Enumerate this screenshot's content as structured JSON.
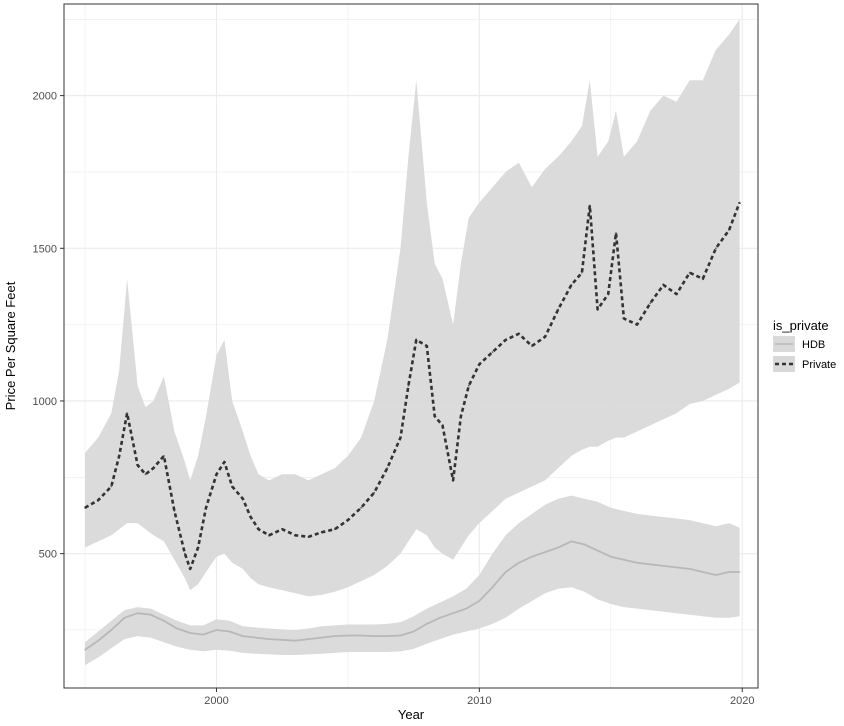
{
  "chart_data": {
    "type": "line",
    "xlabel": "Year",
    "ylabel": "Price Per Square Feet",
    "xlim": [
      1994.2,
      2020.6
    ],
    "ylim": [
      60,
      2300
    ],
    "x_ticks": [
      2000,
      2010,
      2020
    ],
    "x_tick_labels": [
      "2000",
      "2010",
      "2020"
    ],
    "y_ticks": [
      500,
      1000,
      1500,
      2000
    ],
    "y_tick_labels": [
      "500",
      "1000",
      "1500",
      "2000"
    ],
    "grid": true,
    "legend": {
      "title": "is_private",
      "position": "right",
      "entries": [
        "HDB",
        "Private"
      ]
    },
    "colors": {
      "ribbon": "#d9d9d9",
      "hdb_line": "#b8b8b8",
      "private_line": "#333333",
      "grid": "#ebebeb",
      "panel_border": "#333333"
    },
    "series": [
      {
        "name": "HDB",
        "style": "solid",
        "x": [
          1995.0,
          1995.5,
          1996.0,
          1996.5,
          1997.0,
          1997.5,
          1998.0,
          1998.5,
          1999.0,
          1999.5,
          2000.0,
          2000.5,
          2001.0,
          2001.5,
          2002.0,
          2002.5,
          2003.0,
          2003.5,
          2004.0,
          2004.5,
          2005.0,
          2005.5,
          2006.0,
          2006.5,
          2007.0,
          2007.5,
          2008.0,
          2008.5,
          2009.0,
          2009.5,
          2010.0,
          2010.5,
          2011.0,
          2011.5,
          2012.0,
          2012.5,
          2013.0,
          2013.5,
          2014.0,
          2014.5,
          2015.0,
          2015.5,
          2016.0,
          2016.5,
          2017.0,
          2017.5,
          2018.0,
          2018.5,
          2019.0,
          2019.5,
          2019.9
        ],
        "y": [
          185,
          215,
          250,
          290,
          305,
          300,
          280,
          255,
          240,
          235,
          250,
          245,
          230,
          225,
          220,
          218,
          215,
          220,
          225,
          230,
          232,
          232,
          230,
          230,
          232,
          245,
          270,
          290,
          305,
          320,
          345,
          390,
          440,
          470,
          490,
          505,
          520,
          540,
          530,
          510,
          490,
          480,
          470,
          465,
          460,
          455,
          450,
          440,
          430,
          440,
          440
        ],
        "lower": [
          135,
          160,
          190,
          220,
          230,
          225,
          210,
          195,
          185,
          180,
          185,
          182,
          175,
          172,
          170,
          168,
          168,
          170,
          172,
          175,
          178,
          178,
          178,
          178,
          180,
          188,
          205,
          220,
          235,
          245,
          255,
          270,
          290,
          320,
          345,
          370,
          385,
          390,
          375,
          350,
          335,
          325,
          320,
          315,
          310,
          305,
          300,
          295,
          290,
          290,
          295
        ],
        "upper": [
          210,
          245,
          280,
          315,
          325,
          320,
          300,
          280,
          265,
          265,
          285,
          280,
          262,
          258,
          255,
          252,
          250,
          255,
          262,
          265,
          268,
          268,
          268,
          270,
          275,
          295,
          320,
          340,
          360,
          385,
          430,
          500,
          560,
          600,
          630,
          660,
          680,
          690,
          680,
          670,
          650,
          640,
          630,
          625,
          620,
          615,
          610,
          600,
          590,
          600,
          585
        ]
      },
      {
        "name": "Private",
        "style": "dashed",
        "x": [
          1995.0,
          1995.5,
          1996.0,
          1996.3,
          1996.6,
          1997.0,
          1997.3,
          1997.6,
          1998.0,
          1998.4,
          1998.8,
          1999.0,
          1999.3,
          1999.6,
          2000.0,
          2000.3,
          2000.6,
          2001.0,
          2001.3,
          2001.6,
          2002.0,
          2002.5,
          2003.0,
          2003.5,
          2004.0,
          2004.5,
          2005.0,
          2005.5,
          2006.0,
          2006.5,
          2007.0,
          2007.3,
          2007.6,
          2008.0,
          2008.3,
          2008.6,
          2009.0,
          2009.3,
          2009.6,
          2010.0,
          2010.5,
          2011.0,
          2011.5,
          2012.0,
          2012.5,
          2013.0,
          2013.5,
          2013.9,
          2014.2,
          2014.5,
          2014.9,
          2015.2,
          2015.5,
          2016.0,
          2016.5,
          2017.0,
          2017.5,
          2018.0,
          2018.5,
          2019.0,
          2019.5,
          2019.9
        ],
        "y": [
          650,
          675,
          720,
          820,
          960,
          790,
          760,
          780,
          820,
          640,
          500,
          450,
          520,
          650,
          760,
          800,
          720,
          680,
          620,
          580,
          560,
          580,
          560,
          555,
          570,
          580,
          610,
          650,
          700,
          780,
          880,
          1050,
          1200,
          1180,
          950,
          920,
          740,
          950,
          1050,
          1120,
          1160,
          1200,
          1220,
          1180,
          1210,
          1300,
          1380,
          1420,
          1640,
          1300,
          1350,
          1550,
          1270,
          1250,
          1320,
          1380,
          1350,
          1420,
          1400,
          1500,
          1560,
          1650
        ],
        "lower": [
          520,
          540,
          560,
          580,
          600,
          600,
          580,
          560,
          540,
          480,
          420,
          380,
          400,
          440,
          490,
          500,
          470,
          450,
          420,
          400,
          390,
          380,
          370,
          360,
          365,
          375,
          390,
          410,
          430,
          460,
          500,
          540,
          580,
          560,
          520,
          500,
          480,
          520,
          560,
          600,
          640,
          680,
          700,
          720,
          740,
          780,
          820,
          840,
          850,
          850,
          870,
          880,
          880,
          900,
          920,
          940,
          960,
          990,
          1000,
          1020,
          1040,
          1060
        ],
        "upper": [
          830,
          880,
          960,
          1100,
          1400,
          1050,
          980,
          1000,
          1080,
          900,
          800,
          740,
          820,
          950,
          1150,
          1200,
          1000,
          900,
          820,
          760,
          740,
          760,
          760,
          740,
          760,
          780,
          820,
          880,
          1000,
          1200,
          1500,
          1800,
          2050,
          1650,
          1450,
          1400,
          1250,
          1450,
          1600,
          1650,
          1700,
          1750,
          1780,
          1700,
          1760,
          1800,
          1850,
          1900,
          2050,
          1800,
          1850,
          1950,
          1800,
          1850,
          1950,
          2000,
          1980,
          2050,
          2050,
          2150,
          2200,
          2250
        ]
      }
    ]
  }
}
